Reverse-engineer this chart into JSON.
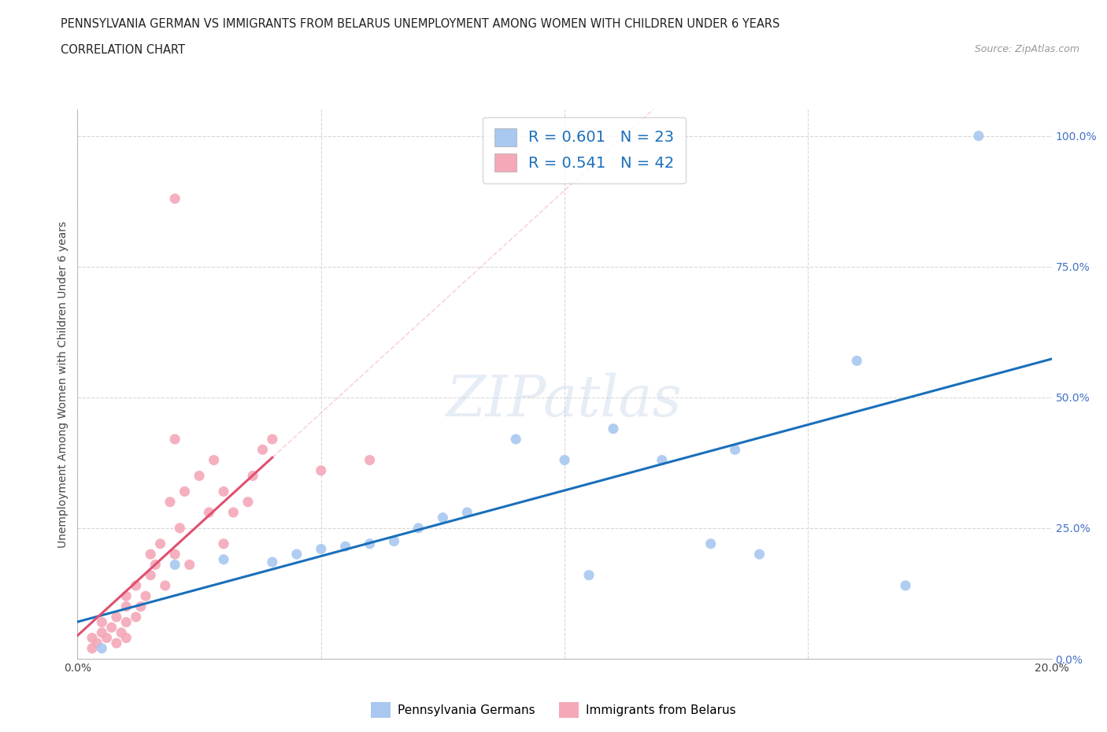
{
  "title_line1": "PENNSYLVANIA GERMAN VS IMMIGRANTS FROM BELARUS UNEMPLOYMENT AMONG WOMEN WITH CHILDREN UNDER 6 YEARS",
  "title_line2": "CORRELATION CHART",
  "source": "Source: ZipAtlas.com",
  "ylabel": "Unemployment Among Women with Children Under 6 years",
  "watermark": "ZIPatlas",
  "blue_label": "Pennsylvania Germans",
  "pink_label": "Immigrants from Belarus",
  "blue_R": 0.601,
  "blue_N": 23,
  "pink_R": 0.541,
  "pink_N": 42,
  "blue_color": "#a8c8f0",
  "pink_color": "#f4a8b8",
  "blue_line_color": "#1a6fba",
  "pink_line_color": "#e05070",
  "pink_dash_color": "#f4a8b8",
  "xlim": [
    0.0,
    0.2
  ],
  "ylim": [
    0.0,
    1.05
  ],
  "xticks": [
    0.0,
    0.05,
    0.1,
    0.15,
    0.2
  ],
  "yticks": [
    0.0,
    0.25,
    0.5,
    0.75,
    1.0
  ],
  "blue_x": [
    0.005,
    0.02,
    0.03,
    0.04,
    0.045,
    0.05,
    0.055,
    0.06,
    0.065,
    0.07,
    0.075,
    0.08,
    0.09,
    0.1,
    0.105,
    0.11,
    0.12,
    0.13,
    0.135,
    0.14,
    0.16,
    0.17,
    0.185
  ],
  "blue_y": [
    0.02,
    0.18,
    0.19,
    0.185,
    0.2,
    0.21,
    0.215,
    0.22,
    0.225,
    0.25,
    0.27,
    0.28,
    0.42,
    0.38,
    0.16,
    0.44,
    0.38,
    0.22,
    0.4,
    0.2,
    0.57,
    0.14,
    1.0
  ],
  "pink_x": [
    0.003,
    0.003,
    0.004,
    0.005,
    0.005,
    0.006,
    0.007,
    0.008,
    0.008,
    0.009,
    0.01,
    0.01,
    0.01,
    0.01,
    0.012,
    0.012,
    0.013,
    0.014,
    0.015,
    0.015,
    0.016,
    0.017,
    0.018,
    0.019,
    0.02,
    0.021,
    0.022,
    0.023,
    0.025,
    0.027,
    0.028,
    0.03,
    0.03,
    0.032,
    0.035,
    0.036,
    0.038,
    0.04,
    0.05,
    0.06,
    0.02,
    0.02
  ],
  "pink_y": [
    0.02,
    0.04,
    0.03,
    0.05,
    0.07,
    0.04,
    0.06,
    0.03,
    0.08,
    0.05,
    0.04,
    0.07,
    0.1,
    0.12,
    0.08,
    0.14,
    0.1,
    0.12,
    0.16,
    0.2,
    0.18,
    0.22,
    0.14,
    0.3,
    0.2,
    0.25,
    0.32,
    0.18,
    0.35,
    0.28,
    0.38,
    0.22,
    0.32,
    0.28,
    0.3,
    0.35,
    0.4,
    0.42,
    0.36,
    0.38,
    0.42,
    0.88
  ],
  "background_color": "#ffffff",
  "grid_color": "#d8d8d8"
}
